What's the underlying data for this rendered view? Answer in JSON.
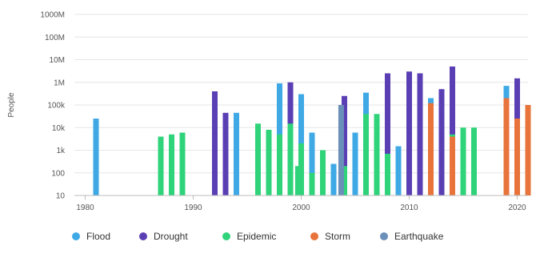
{
  "chart_data": {
    "type": "bar",
    "stacked": true,
    "ylabel": "People",
    "y_scale": "log",
    "ylim": [
      10,
      1000000000
    ],
    "y_ticks": [
      10,
      100,
      1000,
      10000,
      100000,
      1000000,
      10000000,
      100000000,
      1000000000
    ],
    "y_tick_labels": [
      "10",
      "100",
      "1k",
      "10k",
      "100k",
      "1M",
      "10M",
      "100M",
      "1000M"
    ],
    "xlim": [
      1979,
      2021
    ],
    "x_ticks": [
      1980,
      1990,
      2000,
      2010,
      2020
    ],
    "x_tick_labels": [
      "1980",
      "1990",
      "2000",
      "2010",
      "2020"
    ],
    "grid": true,
    "legend_position": "bottom-left",
    "colors": {
      "Flood": "#3fa9e6",
      "Drought": "#5a3fb4",
      "Epidemic": "#2fd37a",
      "Storm": "#e8743b",
      "Earthquake": "#6a8fb8"
    },
    "series": [
      {
        "name": "Flood",
        "points": [
          {
            "x": 1981,
            "y": 25000
          },
          {
            "x": 1994,
            "y": 45000
          },
          {
            "x": 1998,
            "y": 900000
          },
          {
            "x": 2000,
            "y": 300000
          },
          {
            "x": 2001,
            "y": 6000
          },
          {
            "x": 2003,
            "y": 250
          },
          {
            "x": 2005,
            "y": 6000
          },
          {
            "x": 2006,
            "y": 350000
          },
          {
            "x": 2009,
            "y": 1500
          },
          {
            "x": 2011,
            "y": 25000
          },
          {
            "x": 2012,
            "y": 200000
          },
          {
            "x": 2019,
            "y": 700000
          },
          {
            "x": 2020,
            "y": 1000000
          }
        ]
      },
      {
        "name": "Drought",
        "points": [
          {
            "x": 1992,
            "y": 400000
          },
          {
            "x": 1993,
            "y": 45000
          },
          {
            "x": 1999,
            "y": 1000000
          },
          {
            "x": 2004,
            "y": 250000
          },
          {
            "x": 2008,
            "y": 2500000
          },
          {
            "x": 2010,
            "y": 3000000
          },
          {
            "x": 2011,
            "y": 2500000
          },
          {
            "x": 2013,
            "y": 500000
          },
          {
            "x": 2014,
            "y": 5000000
          },
          {
            "x": 2020,
            "y": 1500000
          }
        ]
      },
      {
        "name": "Epidemic",
        "points": [
          {
            "x": 1987,
            "y": 4000
          },
          {
            "x": 1988,
            "y": 5000
          },
          {
            "x": 1989,
            "y": 6000
          },
          {
            "x": 1996,
            "y": 15000
          },
          {
            "x": 1997,
            "y": 8000
          },
          {
            "x": 1998,
            "y": 5000
          },
          {
            "x": 1999,
            "y": 15000
          },
          {
            "x": 1999.7,
            "y": 200
          },
          {
            "x": 2000,
            "y": 2000
          },
          {
            "x": 2001,
            "y": 100
          },
          {
            "x": 2002,
            "y": 1000
          },
          {
            "x": 2004,
            "y": 200
          },
          {
            "x": 2006,
            "y": 40000
          },
          {
            "x": 2007,
            "y": 40000
          },
          {
            "x": 2008,
            "y": 700
          },
          {
            "x": 2014,
            "y": 5000
          },
          {
            "x": 2015,
            "y": 10000
          },
          {
            "x": 2016,
            "y": 10000
          }
        ]
      },
      {
        "name": "Storm",
        "points": [
          {
            "x": 2012,
            "y": 120000
          },
          {
            "x": 2014,
            "y": 4000
          },
          {
            "x": 2019,
            "y": 200000
          },
          {
            "x": 2020,
            "y": 25000
          },
          {
            "x": 2021,
            "y": 100000
          }
        ]
      },
      {
        "name": "Earthquake",
        "points": [
          {
            "x": 2003.7,
            "y": 100000
          }
        ]
      }
    ]
  }
}
